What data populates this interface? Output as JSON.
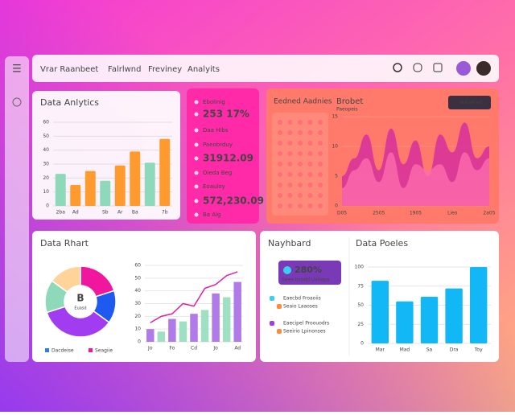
{
  "nav": {
    "title": "Vrar Raanbeet",
    "links": [
      "Falrlwnd",
      "Freviney",
      "Analyits"
    ]
  },
  "stats": {
    "rows": [
      "Ebolinig",
      "253 17%",
      "Daa Hibs",
      "Paeobrduy",
      "31912.09",
      "Oieda Beg",
      "Eoauloy",
      "572,230.09",
      "Ba Alg"
    ]
  },
  "dots": {
    "title": "Eedned Aadnies"
  },
  "neighbor": {
    "title": "Nayhbard",
    "badge": "280%",
    "badge_sub": "Seee bsodd Ualiepo",
    "rows": [
      "Eaecbd Froaoiis",
      "Seaio Laaoses",
      "Eaecipel Proouodrs",
      "Seeirio Lpinonses"
    ]
  },
  "chart_data": [
    {
      "type": "bar",
      "title": "Data Anlytics",
      "categories": [
        "2ba",
        "Ad",
        null,
        "Sb",
        "Ar",
        "Ba",
        null,
        "7b"
      ],
      "values": [
        23,
        15,
        25,
        18,
        29,
        39,
        31,
        48
      ],
      "colors": [
        "#8fd9bb",
        "#ff9a2e",
        "#ff9a2e",
        "#8fd9bb",
        "#ff9a2e",
        "#ff9a2e",
        "#8fd9bb",
        "#ff9a2e"
      ],
      "ylim": [
        0,
        60
      ],
      "yticks": [
        0,
        10,
        20,
        30,
        40,
        50,
        60
      ]
    },
    {
      "type": "area",
      "title": "Brobet",
      "subtitle": "Paeopeis",
      "button": "Nerae ed",
      "categories": [
        "D05",
        null,
        null,
        "2505",
        null,
        null,
        "1905",
        null,
        null,
        "Lieo",
        null,
        null,
        "2a05"
      ],
      "series": [
        {
          "color": "#d9339b",
          "values": [
            5,
            8,
            12,
            6,
            13,
            7,
            11,
            5,
            12,
            9,
            14,
            8,
            10
          ]
        },
        {
          "color": "#ff6fae",
          "values": [
            3,
            6,
            8,
            4,
            9,
            3,
            7,
            6,
            7,
            4,
            9,
            6,
            8
          ]
        }
      ],
      "ylim": [
        0,
        15
      ],
      "yticks": [
        0,
        5,
        10,
        15
      ]
    },
    {
      "type": "pie",
      "title": "Data Rhart",
      "center": "B",
      "center_sub": "Euasd",
      "values": [
        20,
        15,
        35,
        15,
        15
      ],
      "colors": [
        "#f0169e",
        "#1f5af0",
        "#a23cf0",
        "#8fd9bb",
        "#ffd39a"
      ],
      "legend": [
        {
          "name": "Dacdeise",
          "color": "#2f7cf0"
        },
        {
          "name": "Seagiie",
          "color": "#f0169e"
        }
      ]
    },
    {
      "type": "combo",
      "categories": [
        "Jo",
        null,
        "Fo",
        null,
        "Cd",
        null,
        "Jo",
        null,
        "Ad"
      ],
      "series": [
        {
          "color": "#b07ae8",
          "values": [
            10,
            8,
            18,
            16,
            22,
            25,
            38,
            35,
            47
          ]
        },
        {
          "color": "#e0229e",
          "values": [
            15,
            20,
            22,
            30,
            28,
            42,
            45,
            52,
            55
          ]
        }
      ],
      "bar_colors": [
        "#b07ae8",
        "#9fe0c4"
      ],
      "ylim": [
        0,
        60
      ],
      "yticks": [
        0,
        10,
        20,
        30,
        40,
        50,
        60
      ]
    },
    {
      "type": "bar",
      "title": "Data Poeles",
      "categories": [
        "Mar",
        "Mad",
        "Sa",
        "Dra",
        "Toy"
      ],
      "values": [
        82,
        55,
        61,
        72,
        100
      ],
      "colors": [
        "#12b8f5",
        "#12b8f5",
        "#12b8f5",
        "#12b8f5",
        "#12b8f5"
      ],
      "ylim": [
        0,
        100
      ],
      "yticks": [
        0,
        25,
        50,
        75,
        100
      ]
    }
  ]
}
